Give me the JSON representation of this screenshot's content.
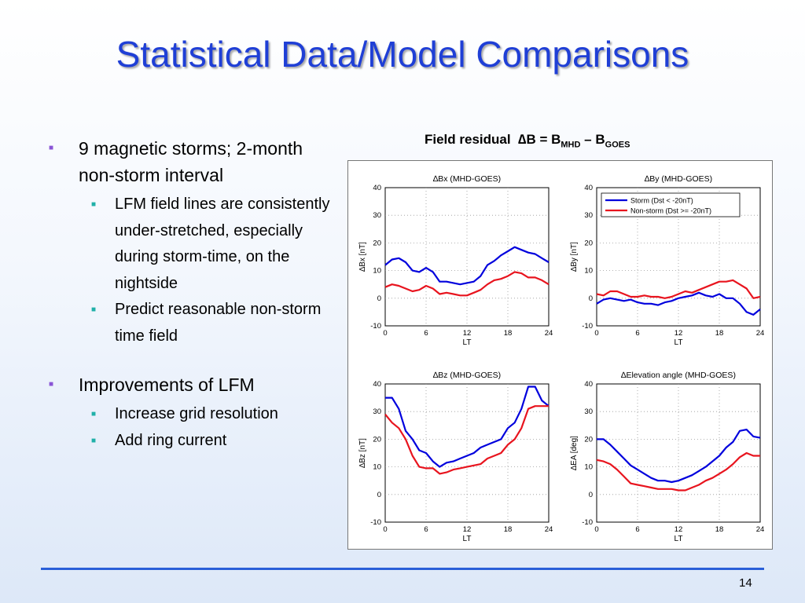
{
  "slide": {
    "title": "Statistical Data/Model Comparisons",
    "page_number": "14"
  },
  "bullets": {
    "b1": {
      "text": "9 magnetic storms; 2-month non-storm interval"
    },
    "b1_sub1": {
      "text": "LFM field lines are consistently under-stretched, especially during storm-time, on the nightside"
    },
    "b1_sub2": {
      "text": "Predict reasonable non-storm time field"
    },
    "b2": {
      "text": "Improvements of LFM"
    },
    "b2_sub1": {
      "text": "Increase grid resolution"
    },
    "b2_sub2": {
      "text": "Add ring current"
    }
  },
  "caption": {
    "prefix": "Field residual",
    "delta_b": "∆B = B",
    "mhd": "MHD",
    "minus": " – B",
    "goes": "GOES"
  },
  "colors": {
    "storm": "#0000dd",
    "nonstorm": "#e8141e",
    "title": "#1f3fd6"
  },
  "chart_data": [
    {
      "type": "line",
      "title": "∆Bx (MHD-GOES)",
      "xlabel": "LT",
      "ylabel": "∆Bx [nT]",
      "xlim": [
        0,
        24
      ],
      "ylim": [
        -10,
        40
      ],
      "xticks": [
        0,
        6,
        12,
        18,
        24
      ],
      "yticks": [
        -10,
        0,
        10,
        20,
        30,
        40
      ],
      "grid": true,
      "x": [
        0,
        1,
        2,
        3,
        4,
        5,
        6,
        7,
        8,
        9,
        10,
        11,
        12,
        13,
        14,
        15,
        16,
        17,
        18,
        19,
        20,
        21,
        22,
        23,
        24
      ],
      "series": [
        {
          "name": "Storm (Dst < -20nT)",
          "values": [
            12,
            14,
            14.5,
            13,
            10,
            9.5,
            11,
            9.5,
            6,
            6,
            5.5,
            5,
            5.5,
            6,
            8,
            12,
            13.5,
            15.5,
            17,
            18.5,
            17.5,
            16.5,
            16,
            14.5,
            13
          ]
        },
        {
          "name": "Non-storm (Dst >= -20nT)",
          "values": [
            4,
            5,
            4.5,
            3.5,
            2.5,
            3,
            4.5,
            3.5,
            1.5,
            2,
            1.5,
            1,
            1,
            2,
            3,
            5,
            6.5,
            7,
            8,
            9.5,
            9,
            7.5,
            7.5,
            6.5,
            5
          ]
        }
      ]
    },
    {
      "type": "line",
      "title": "∆By (MHD-GOES)",
      "xlabel": "LT",
      "ylabel": "∆By [nT]",
      "xlim": [
        0,
        24
      ],
      "ylim": [
        -10,
        40
      ],
      "xticks": [
        0,
        6,
        12,
        18,
        24
      ],
      "yticks": [
        -10,
        0,
        10,
        20,
        30,
        40
      ],
      "grid": true,
      "legend": "top",
      "x": [
        0,
        1,
        2,
        3,
        4,
        5,
        6,
        7,
        8,
        9,
        10,
        11,
        12,
        13,
        14,
        15,
        16,
        17,
        18,
        19,
        20,
        21,
        22,
        23,
        24
      ],
      "series": [
        {
          "name": "Storm (Dst < -20nT)",
          "values": [
            -2,
            -0.5,
            0,
            -0.5,
            -1,
            -0.5,
            -1.5,
            -2,
            -2,
            -2.5,
            -1.5,
            -1,
            0,
            0.5,
            1,
            2,
            1,
            0.5,
            1.5,
            0,
            0,
            -2,
            -5,
            -6,
            -4
          ]
        },
        {
          "name": "Non-storm (Dst >= -20nT)",
          "values": [
            1.5,
            1,
            2.5,
            2.5,
            1.5,
            0.5,
            0.5,
            1,
            0.5,
            0.5,
            0,
            0.5,
            1.5,
            2.5,
            2,
            3,
            4,
            5,
            6,
            6,
            6.5,
            5,
            3.5,
            0,
            0.5
          ]
        }
      ]
    },
    {
      "type": "line",
      "title": "∆Bz (MHD-GOES)",
      "xlabel": "LT",
      "ylabel": "∆Bz [nT]",
      "xlim": [
        0,
        24
      ],
      "ylim": [
        -10,
        40
      ],
      "xticks": [
        0,
        6,
        12,
        18,
        24
      ],
      "yticks": [
        -10,
        0,
        10,
        20,
        30,
        40
      ],
      "grid": true,
      "x": [
        0,
        1,
        2,
        3,
        4,
        5,
        6,
        7,
        8,
        9,
        10,
        11,
        12,
        13,
        14,
        15,
        16,
        17,
        18,
        19,
        20,
        21,
        22,
        23,
        24
      ],
      "series": [
        {
          "name": "Storm (Dst < -20nT)",
          "values": [
            35,
            35,
            31,
            23,
            20,
            16,
            15,
            12,
            10,
            11.5,
            12,
            13,
            14,
            15,
            17,
            18,
            19,
            20,
            24,
            26,
            31,
            39,
            39,
            34,
            32
          ]
        },
        {
          "name": "Non-storm (Dst >= -20nT)",
          "values": [
            29,
            26,
            24,
            20,
            14,
            10,
            9.5,
            9.5,
            7.5,
            8,
            9,
            9.5,
            10,
            10.5,
            11,
            13,
            14,
            15,
            18,
            20,
            24,
            31,
            32,
            32,
            32
          ]
        }
      ]
    },
    {
      "type": "line",
      "title": "∆Elevation angle (MHD-GOES)",
      "xlabel": "LT",
      "ylabel": "∆EA [deg]",
      "xlim": [
        0,
        24
      ],
      "ylim": [
        -10,
        40
      ],
      "xticks": [
        0,
        6,
        12,
        18,
        24
      ],
      "yticks": [
        -10,
        0,
        10,
        20,
        30,
        40
      ],
      "grid": true,
      "x": [
        0,
        1,
        2,
        3,
        4,
        5,
        6,
        7,
        8,
        9,
        10,
        11,
        12,
        13,
        14,
        15,
        16,
        17,
        18,
        19,
        20,
        21,
        22,
        23,
        24
      ],
      "series": [
        {
          "name": "Storm (Dst < -20nT)",
          "values": [
            20,
            20,
            18,
            15.5,
            13,
            10.5,
            9,
            7.5,
            6,
            5,
            5,
            4.5,
            5,
            6,
            7,
            8.5,
            10,
            12,
            14,
            17,
            19,
            23,
            23.5,
            21,
            20.5
          ]
        },
        {
          "name": "Non-storm (Dst >= -20nT)",
          "values": [
            12.5,
            12,
            11,
            9,
            6.5,
            4,
            3.5,
            3,
            2.5,
            2,
            2,
            2,
            1.5,
            1.5,
            2.5,
            3.5,
            5,
            6,
            7.5,
            9,
            11,
            13.5,
            15,
            14,
            14
          ]
        }
      ]
    }
  ]
}
